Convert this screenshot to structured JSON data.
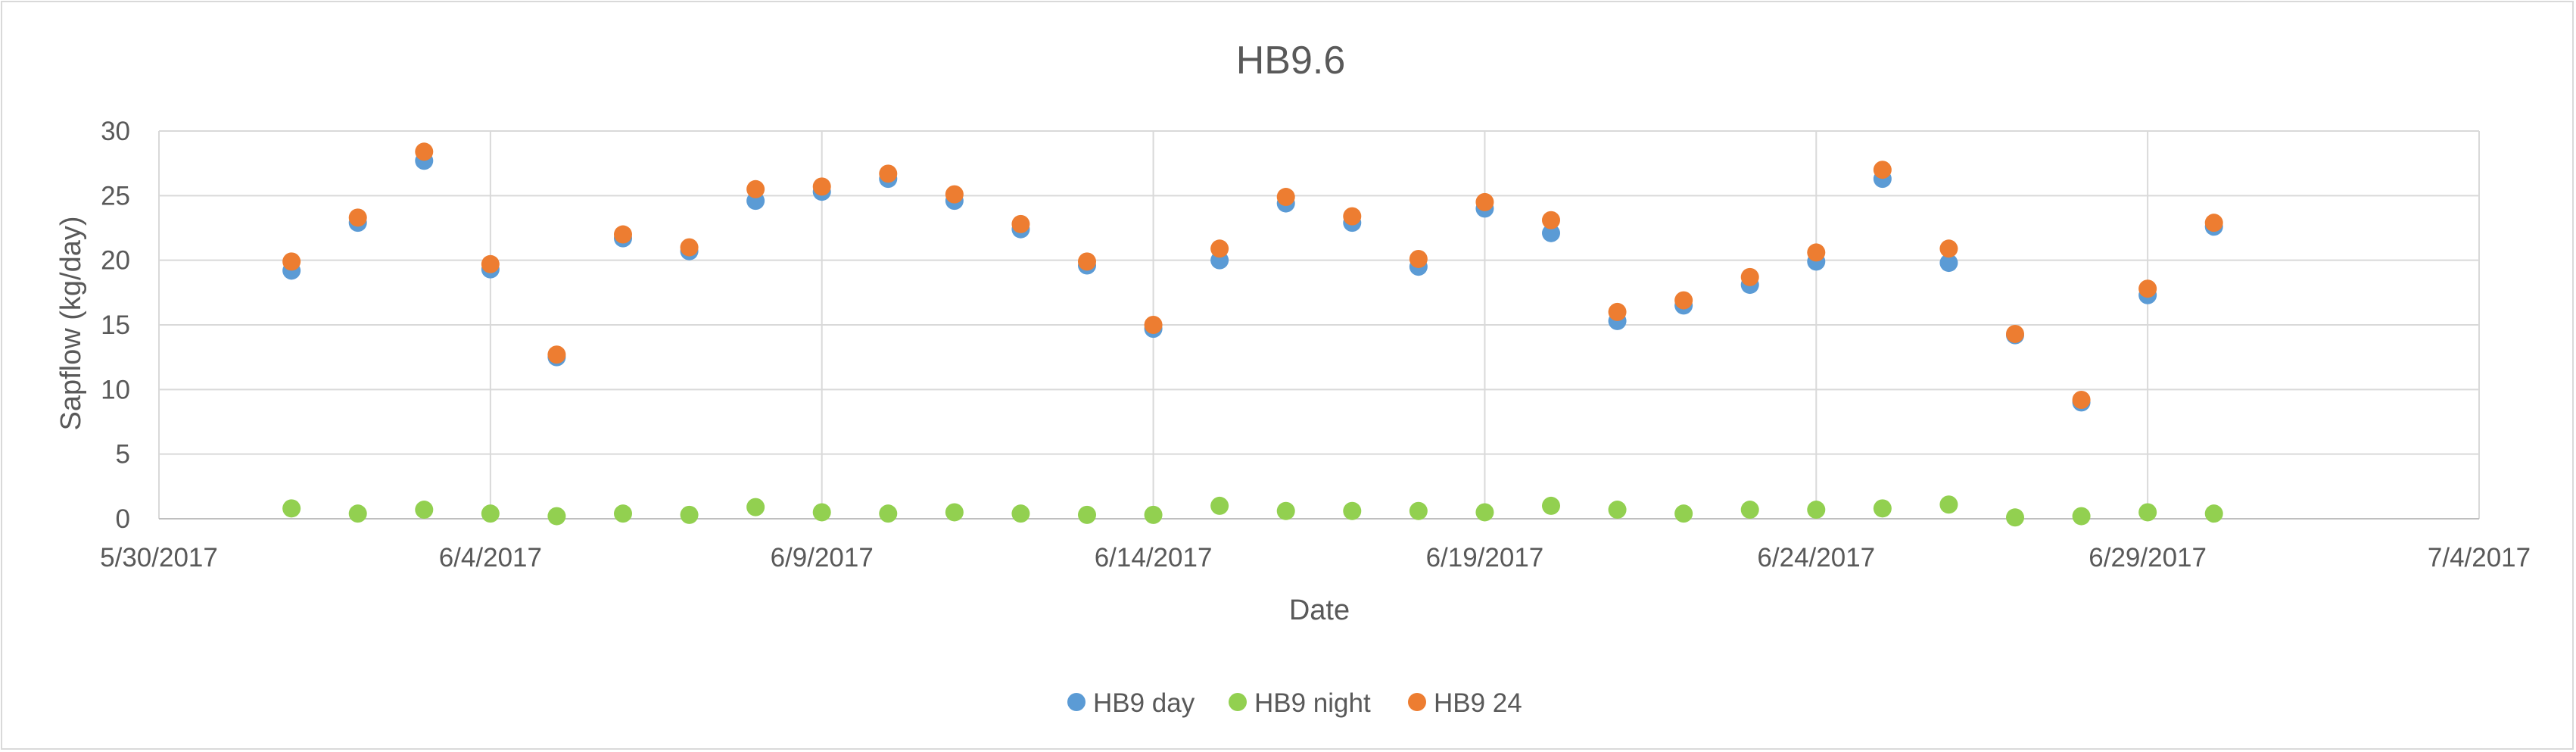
{
  "chart_data": {
    "type": "scatter",
    "title": "HB9.6",
    "xlabel": "Date",
    "ylabel": "Sapflow (kg/day)",
    "x_tick_labels": [
      "5/30/2017",
      "6/4/2017",
      "6/9/2017",
      "6/14/2017",
      "6/19/2017",
      "6/24/2017",
      "6/29/2017",
      "7/4/2017"
    ],
    "xlim": [
      "5/30/2017",
      "7/4/2017"
    ],
    "x_tick_step_days": 5,
    "y_ticks": [
      "0",
      "5",
      "10",
      "15",
      "20",
      "25",
      "30"
    ],
    "ylim": [
      0,
      30
    ],
    "grid": true,
    "legend_position": "bottom",
    "dates": [
      "6/1/2017",
      "6/2/2017",
      "6/3/2017",
      "6/4/2017",
      "6/5/2017",
      "6/6/2017",
      "6/7/2017",
      "6/8/2017",
      "6/9/2017",
      "6/10/2017",
      "6/11/2017",
      "6/12/2017",
      "6/13/2017",
      "6/14/2017",
      "6/15/2017",
      "6/16/2017",
      "6/17/2017",
      "6/18/2017",
      "6/19/2017",
      "6/20/2017",
      "6/21/2017",
      "6/22/2017",
      "6/23/2017",
      "6/24/2017",
      "6/25/2017",
      "6/26/2017",
      "6/27/2017",
      "6/28/2017",
      "6/29/2017",
      "6/30/2017"
    ],
    "series": [
      {
        "name": "HB9 day",
        "color": "#5B9BD5",
        "values": [
          19.2,
          22.9,
          27.7,
          19.3,
          12.5,
          21.7,
          20.7,
          24.6,
          25.3,
          26.3,
          24.6,
          22.4,
          19.6,
          14.7,
          20.0,
          24.4,
          22.9,
          19.5,
          24.0,
          22.1,
          15.3,
          16.5,
          18.1,
          19.9,
          26.3,
          19.8,
          14.2,
          9.0,
          17.3,
          22.6
        ]
      },
      {
        "name": "HB9 night",
        "color": "#92D050",
        "values": [
          0.8,
          0.4,
          0.7,
          0.4,
          0.2,
          0.4,
          0.3,
          0.9,
          0.5,
          0.4,
          0.5,
          0.4,
          0.3,
          0.3,
          1.0,
          0.6,
          0.6,
          0.6,
          0.5,
          1.0,
          0.7,
          0.4,
          0.7,
          0.7,
          0.8,
          1.1,
          0.1,
          0.2,
          0.5,
          0.4
        ]
      },
      {
        "name": "HB9 24",
        "color": "#ED7D31",
        "values": [
          19.9,
          23.3,
          28.4,
          19.7,
          12.7,
          22.0,
          21.0,
          25.5,
          25.7,
          26.7,
          25.1,
          22.8,
          19.9,
          15.0,
          20.9,
          24.9,
          23.4,
          20.1,
          24.5,
          23.1,
          16.0,
          16.9,
          18.7,
          20.6,
          27.0,
          20.9,
          14.3,
          9.2,
          17.8,
          22.9
        ]
      }
    ]
  }
}
